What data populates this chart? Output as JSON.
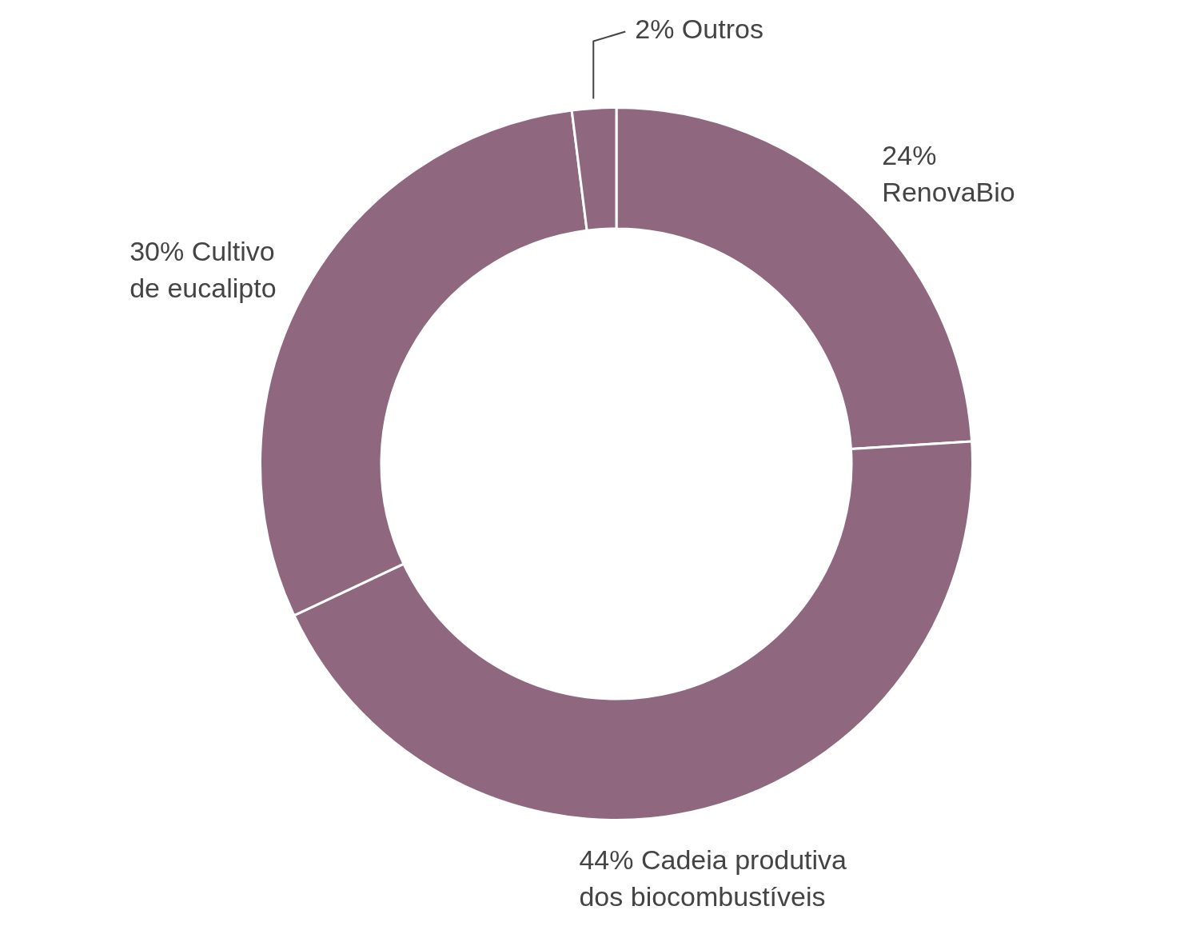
{
  "chart_data": {
    "type": "donut",
    "categories": [
      "RenovaBio",
      "Cadeia produtiva dos biocombustíveis",
      "Cultivo de eucalipto",
      "Outros"
    ],
    "values": [
      24,
      44,
      30,
      2
    ],
    "value_labels": [
      "24%",
      "44%",
      "30%",
      "2%"
    ],
    "colors": [
      "#8f6880",
      "#8f6880",
      "#8f6880",
      "#8f6880"
    ],
    "legend": false
  }
}
